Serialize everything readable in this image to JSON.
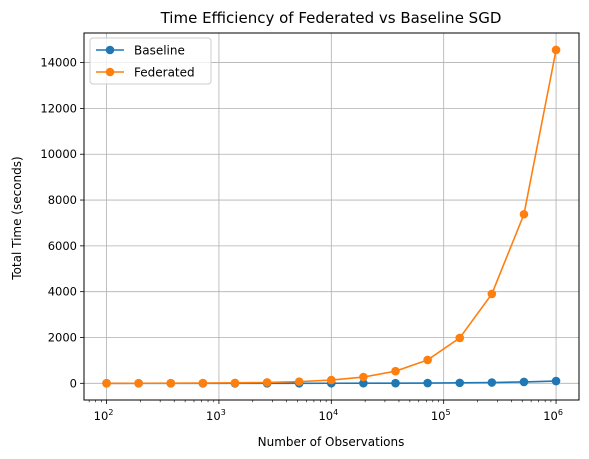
{
  "chart_data": {
    "type": "line",
    "title": "Time Efficiency of Federated vs Baseline SGD",
    "xlabel": "Number of Observations",
    "ylabel": "Total Time (seconds)",
    "xscale": "log",
    "xlim": [
      63,
      1600000
    ],
    "ylim": [
      -728,
      15291
    ],
    "grid": true,
    "legend_position": "top-left",
    "xticks": [
      {
        "value": 100,
        "base": "10",
        "exp": "2"
      },
      {
        "value": 1000,
        "base": "10",
        "exp": "3"
      },
      {
        "value": 10000,
        "base": "10",
        "exp": "4"
      },
      {
        "value": 100000,
        "base": "10",
        "exp": "5"
      },
      {
        "value": 1000000,
        "base": "10",
        "exp": "6"
      }
    ],
    "yticks": [
      {
        "value": 0,
        "label": "0"
      },
      {
        "value": 2000,
        "label": "2000"
      },
      {
        "value": 4000,
        "label": "4000"
      },
      {
        "value": 6000,
        "label": "6000"
      },
      {
        "value": 8000,
        "label": "8000"
      },
      {
        "value": 10000,
        "label": "10000"
      },
      {
        "value": 12000,
        "label": "12000"
      },
      {
        "value": 14000,
        "label": "14000"
      }
    ],
    "x": [
      100,
      193,
      373,
      720,
      1389,
      2683,
      5179,
      10000,
      19307,
      37276,
      71969,
      138950,
      268270,
      517947,
      1000000
    ],
    "series": [
      {
        "name": "Baseline",
        "color": "#1f77b4",
        "values": [
          0.1,
          0.1,
          0.2,
          0.3,
          0.5,
          0.8,
          1.5,
          2.5,
          4,
          7,
          12,
          20,
          35,
          60,
          100
        ]
      },
      {
        "name": "Federated",
        "color": "#ff7f0e",
        "values": [
          1.5,
          3,
          5.5,
          10.5,
          20,
          38,
          74,
          142,
          275,
          530,
          1020,
          1980,
          3900,
          7380,
          14550
        ]
      }
    ]
  }
}
